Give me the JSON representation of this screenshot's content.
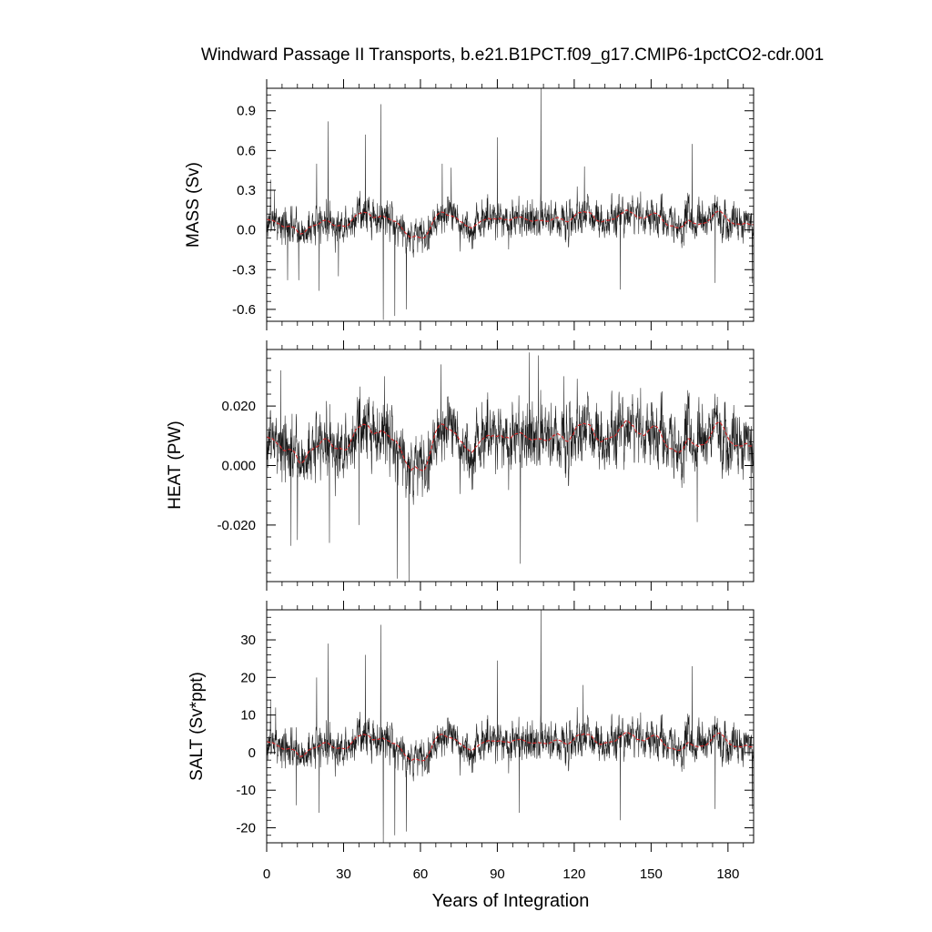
{
  "chart_data": {
    "type": "line",
    "title": "Windward Passage II Transports, b.e21.B1PCT.f09_g17.CMIP6-1pctCO2-cdr.001",
    "xlabel": "Years of Integration",
    "xlim": [
      0,
      190
    ],
    "x_ticks": [
      0,
      30,
      60,
      90,
      120,
      150,
      180
    ],
    "n_months": 2280,
    "series_styles": {
      "monthly_color": "#000000",
      "smoothed_color": "#d62728"
    },
    "panels": [
      {
        "name": "mass",
        "ylabel": "MASS (Sv)",
        "ylim": [
          -0.69,
          1.07
        ],
        "y_ticks": [
          -0.6,
          -0.3,
          0.0,
          0.3,
          0.6,
          0.9
        ],
        "y_tick_labels": [
          "-0.6",
          "-0.3",
          "0.0",
          "0.3",
          "0.6",
          "0.9"
        ],
        "base": 0.06,
        "noise": 0.07,
        "smooth_amp": 0.05,
        "spikes": [
          [
            1.5,
            0.38
          ],
          [
            3.0,
            0.3
          ],
          [
            8.2,
            -0.38
          ],
          [
            12.5,
            -0.38
          ],
          [
            19.5,
            0.5
          ],
          [
            20.5,
            -0.46
          ],
          [
            24.0,
            0.82
          ],
          [
            28.0,
            -0.35
          ],
          [
            38.5,
            0.72
          ],
          [
            44.5,
            0.95
          ],
          [
            45.5,
            -0.68
          ],
          [
            50.0,
            -0.65
          ],
          [
            54.5,
            -0.6
          ],
          [
            68.5,
            0.5
          ],
          [
            72.0,
            0.47
          ],
          [
            90.0,
            0.7
          ],
          [
            107.0,
            1.07
          ],
          [
            124.0,
            0.48
          ],
          [
            138.0,
            -0.45
          ],
          [
            166.0,
            0.65
          ],
          [
            175.0,
            -0.4
          ],
          [
            189.5,
            -0.4
          ]
        ]
      },
      {
        "name": "heat",
        "ylabel": "HEAT (PW)",
        "ylim": [
          -0.039,
          0.039
        ],
        "y_ticks": [
          -0.02,
          0.0,
          0.02
        ],
        "y_tick_labels": [
          "-0.020",
          "0.000",
          "0.020"
        ],
        "base": 0.008,
        "noise": 0.0055,
        "smooth_amp": 0.004,
        "spikes": [
          [
            5.5,
            0.032
          ],
          [
            9.5,
            -0.027
          ],
          [
            12.0,
            -0.025
          ],
          [
            24.5,
            -0.026
          ],
          [
            36.0,
            -0.02
          ],
          [
            46.0,
            0.03
          ],
          [
            51.0,
            -0.038
          ],
          [
            55.5,
            -0.039
          ],
          [
            68.0,
            0.034
          ],
          [
            99.0,
            -0.033
          ],
          [
            102.5,
            0.038
          ],
          [
            106.0,
            0.037
          ],
          [
            116.0,
            0.03
          ],
          [
            168.0,
            -0.019
          ],
          [
            189.0,
            -0.016
          ]
        ]
      },
      {
        "name": "salt",
        "ylabel": "SALT (Sv*ppt)",
        "ylim": [
          -24,
          38
        ],
        "y_ticks": [
          -20,
          -10,
          0,
          10,
          20,
          30
        ],
        "y_tick_labels": [
          "-20",
          "-10",
          "0",
          "10",
          "20",
          "30"
        ],
        "base": 2.2,
        "noise": 2.6,
        "smooth_amp": 1.8,
        "spikes": [
          [
            1.5,
            14
          ],
          [
            3.5,
            12
          ],
          [
            11.5,
            -14
          ],
          [
            19.5,
            20
          ],
          [
            20.5,
            -16
          ],
          [
            24.0,
            29
          ],
          [
            38.5,
            26
          ],
          [
            44.5,
            34
          ],
          [
            45.5,
            -24
          ],
          [
            50.0,
            -22
          ],
          [
            54.5,
            -21
          ],
          [
            90.0,
            24.5
          ],
          [
            98.5,
            -16
          ],
          [
            107.0,
            38
          ],
          [
            123.5,
            18
          ],
          [
            138.0,
            -18
          ],
          [
            166.0,
            23
          ],
          [
            175.0,
            -15
          ],
          [
            189.5,
            -15
          ]
        ]
      }
    ]
  }
}
